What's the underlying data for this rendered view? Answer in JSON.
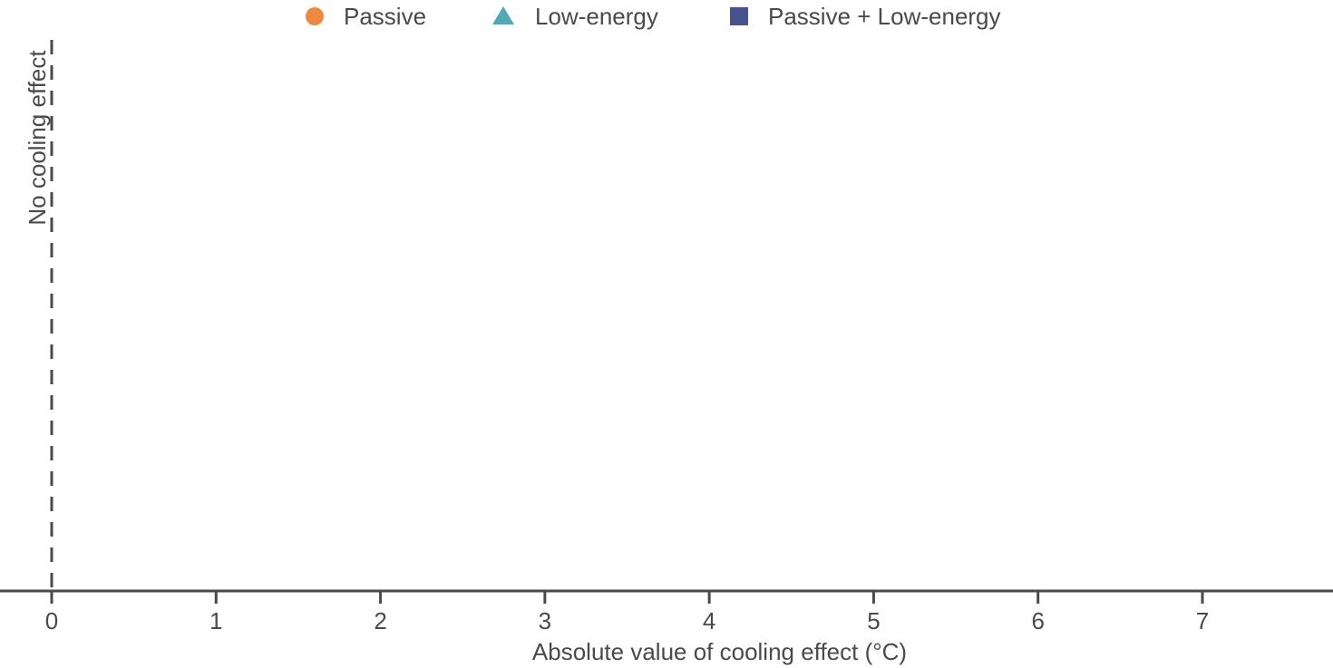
{
  "chart_data": {
    "type": "scatter",
    "title": "",
    "xlabel": "Absolute value of cooling effect (°C)",
    "ylabel": "",
    "xlim": [
      -0.3,
      7.8
    ],
    "x_ticks": [
      0,
      1,
      2,
      3,
      4,
      5,
      6,
      7
    ],
    "x_tick_labels": [
      "0",
      "1",
      "2",
      "3",
      "4",
      "5",
      "6",
      "7"
    ],
    "grid": false,
    "legend": {
      "placement": "top-center",
      "entries": [
        {
          "name": "Passive",
          "marker": "circle",
          "color": "#ee8a3e"
        },
        {
          "name": "Low-energy",
          "marker": "triangle",
          "color": "#52a9b6"
        },
        {
          "name": "Passive + Low-energy",
          "marker": "square",
          "color": "#46538f"
        }
      ]
    },
    "series": [
      {
        "name": "Passive",
        "points": []
      },
      {
        "name": "Low-energy",
        "points": []
      },
      {
        "name": "Passive + Low-energy",
        "points": []
      }
    ],
    "reference_line": {
      "x": 0,
      "style": "dashed",
      "label": "No cooling effect"
    },
    "colors": {
      "text": "#4a4a4a",
      "axis": "#4a4a4a"
    }
  }
}
